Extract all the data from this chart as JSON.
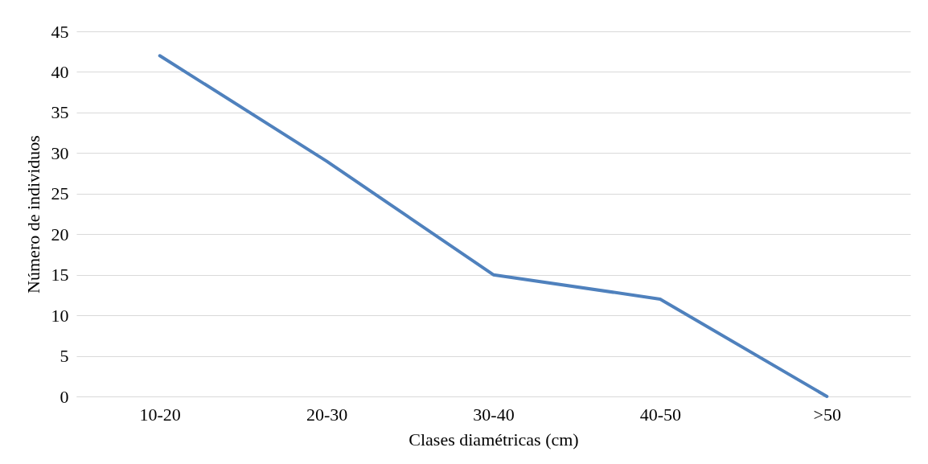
{
  "chart_data": {
    "type": "line",
    "xlabel": "Clases diamétricas (cm)",
    "ylabel": "Número de individuos",
    "categories": [
      "10-20",
      "20-30",
      "30-40",
      "40-50",
      ">50"
    ],
    "series": [
      {
        "color": "#4f81bd",
        "values": [
          42,
          29,
          15,
          12,
          0
        ]
      }
    ],
    "ylim": [
      0,
      45
    ],
    "yticks": [
      0,
      5,
      10,
      15,
      20,
      25,
      30,
      35,
      40,
      45
    ],
    "grid": "y",
    "marker": "none",
    "line_style": "solid"
  }
}
